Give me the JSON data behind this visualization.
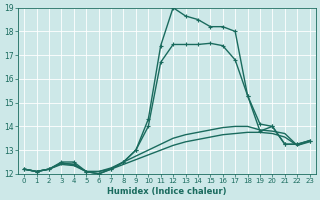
{
  "xlabel": "Humidex (Indice chaleur)",
  "ylabel": "",
  "xlim": [
    -0.5,
    23.5
  ],
  "ylim": [
    12,
    19
  ],
  "xticks": [
    0,
    1,
    2,
    3,
    4,
    5,
    6,
    7,
    8,
    9,
    10,
    11,
    12,
    13,
    14,
    15,
    16,
    17,
    18,
    19,
    20,
    21,
    22,
    23
  ],
  "yticks": [
    12,
    13,
    14,
    15,
    16,
    17,
    18,
    19
  ],
  "bg_color": "#cde8e8",
  "grid_color": "#b0d8d8",
  "line_color": "#1a6b5e",
  "lines": [
    {
      "x": [
        0,
        1,
        2,
        3,
        4,
        5,
        6,
        7,
        8,
        9,
        10,
        11,
        12,
        13,
        14,
        15,
        16,
        17,
        18,
        19,
        20,
        21,
        22,
        23
      ],
      "y": [
        12.2,
        12.1,
        12.2,
        12.5,
        12.5,
        12.1,
        12.0,
        12.2,
        12.5,
        13.0,
        14.3,
        17.4,
        19.0,
        18.65,
        18.5,
        18.2,
        18.2,
        18.0,
        15.3,
        14.1,
        14.0,
        13.25,
        13.25,
        13.4
      ],
      "marker": "+",
      "lw": 1.0
    },
    {
      "x": [
        0,
        1,
        2,
        3,
        4,
        5,
        6,
        7,
        8,
        9,
        10,
        11,
        12,
        13,
        14,
        15,
        16,
        17,
        18,
        19,
        20,
        21,
        22,
        23
      ],
      "y": [
        12.2,
        12.1,
        12.2,
        12.45,
        12.4,
        12.1,
        12.0,
        12.2,
        12.5,
        13.0,
        14.0,
        16.7,
        17.45,
        17.45,
        17.45,
        17.5,
        17.4,
        16.8,
        15.3,
        13.8,
        14.0,
        13.25,
        13.25,
        13.4
      ],
      "marker": "+",
      "lw": 1.0
    },
    {
      "x": [
        0,
        1,
        2,
        3,
        4,
        5,
        6,
        7,
        8,
        9,
        10,
        11,
        12,
        13,
        14,
        15,
        16,
        17,
        18,
        19,
        20,
        21,
        22,
        23
      ],
      "y": [
        12.2,
        12.1,
        12.2,
        12.45,
        12.4,
        12.1,
        12.1,
        12.25,
        12.5,
        12.75,
        13.0,
        13.25,
        13.5,
        13.65,
        13.75,
        13.85,
        13.95,
        14.0,
        14.0,
        13.85,
        13.8,
        13.7,
        13.2,
        13.4
      ],
      "marker": null,
      "lw": 1.0
    },
    {
      "x": [
        0,
        1,
        2,
        3,
        4,
        5,
        6,
        7,
        8,
        9,
        10,
        11,
        12,
        13,
        14,
        15,
        16,
        17,
        18,
        19,
        20,
        21,
        22,
        23
      ],
      "y": [
        12.2,
        12.1,
        12.2,
        12.4,
        12.35,
        12.1,
        12.1,
        12.2,
        12.4,
        12.6,
        12.8,
        13.0,
        13.2,
        13.35,
        13.45,
        13.55,
        13.65,
        13.7,
        13.75,
        13.75,
        13.7,
        13.55,
        13.2,
        13.35
      ],
      "marker": null,
      "lw": 1.0
    }
  ]
}
